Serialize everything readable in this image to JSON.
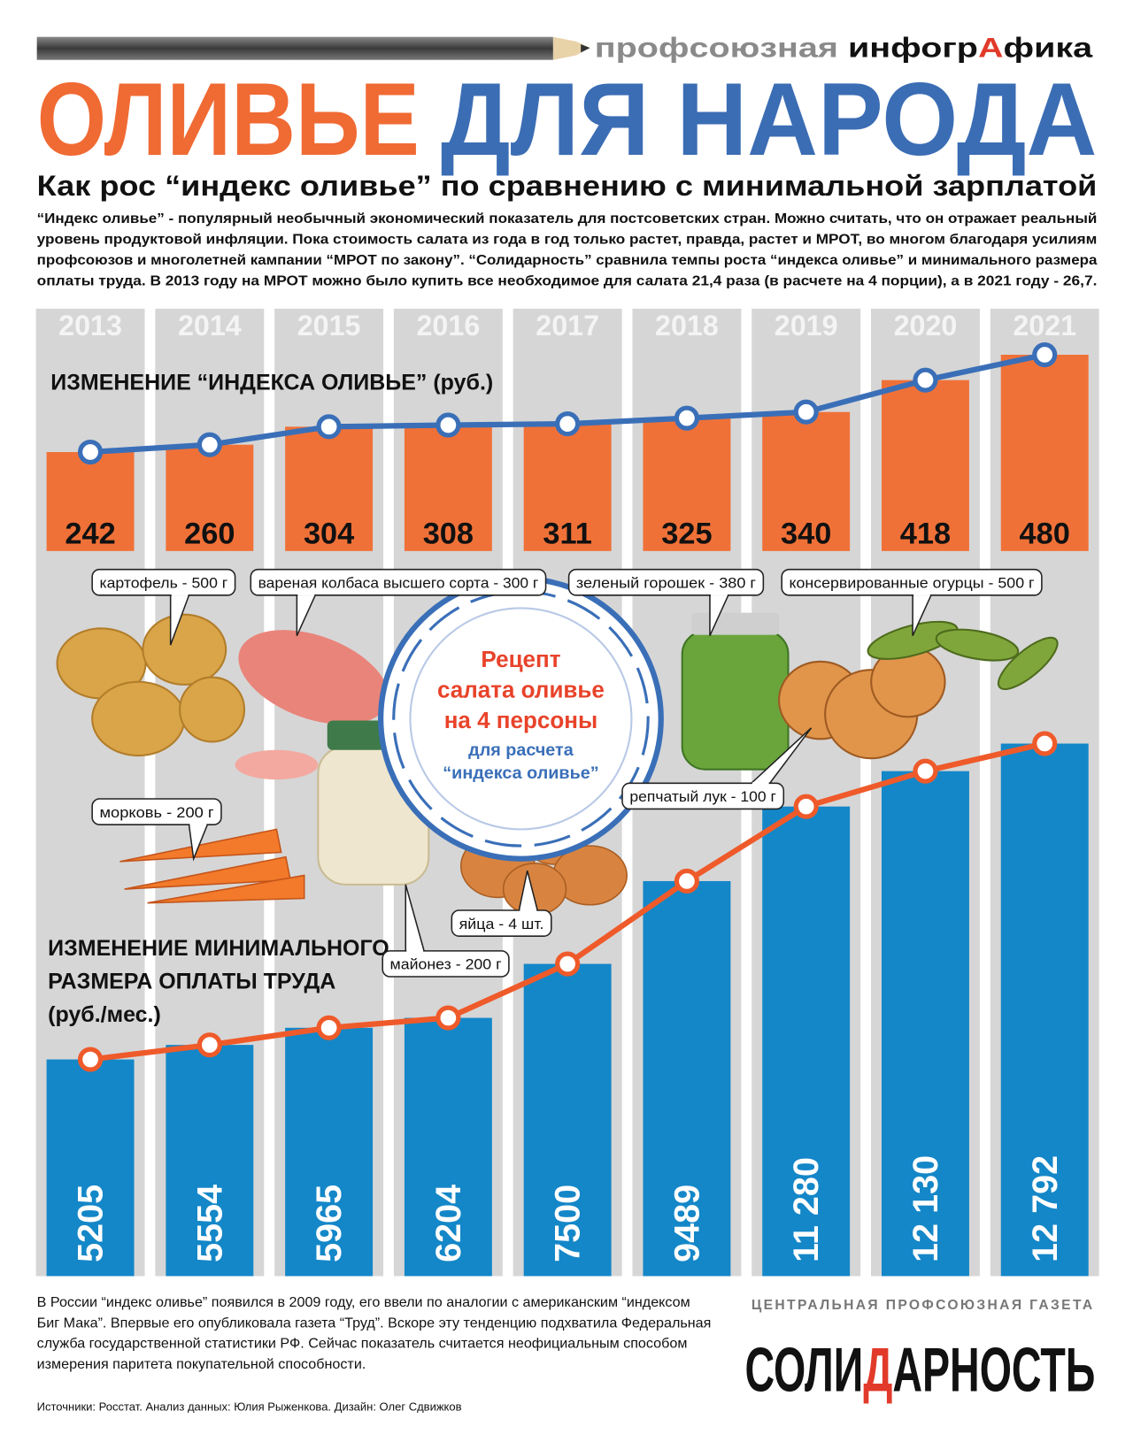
{
  "header": {
    "brand_parts": [
      "профсоюзная",
      "инфогр",
      "А",
      "фика"
    ],
    "title_part1": "ОЛИВЬЕ",
    "title_part2": "ДЛЯ НАРОДА",
    "subtitle": "Как рос “индекс оливье” по сравнению с минимальной зарплатой",
    "intro": [
      "“Индекс оливье” - популярный необычный экономический показатель для постсоветских стран. Можно считать, что он отражает реальный",
      "уровень продуктовой инфляции. Пока стоимость салата из года в год только растет, правда, растет и МРОТ, во многом благодаря усилиям",
      "профсоюзов и многолетней кампании “МРОТ по закону”. “Солидарность” сравнила темпы роста “индекса оливье” и минимального размера",
      "оплаты труда. В 2013 году на МРОТ можно было купить все необходимое для салата 21,4 раза (в расчете на 4 порции), а в 2021 году - 26,7."
    ]
  },
  "chart_data": {
    "type": "bar_line",
    "categories": [
      "2013",
      "2014",
      "2015",
      "2016",
      "2017",
      "2018",
      "2019",
      "2020",
      "2021"
    ],
    "series": [
      {
        "name": "ИЗМЕНЕНИЕ “ИНДЕКСА ОЛИВЬЕ” (руб.)",
        "color": "#f07138",
        "line_color": "#3a6fb8",
        "values": [
          242,
          260,
          304,
          308,
          311,
          325,
          340,
          418,
          480
        ]
      },
      {
        "name": "ИЗМЕНЕНИЕ МИНИМАЛЬНОГО\nРАЗМЕРА ОПЛАТЫ ТРУДА\n(руб./мес.)",
        "color": "#1487c8",
        "line_color": "#ef5a2a",
        "values": [
          5205,
          5554,
          5965,
          6204,
          7500,
          9489,
          11280,
          12130,
          12792
        ],
        "value_labels": [
          "5205",
          "5554",
          "5965",
          "6204",
          "7500",
          "9489",
          "11 280",
          "12 130",
          "12 792"
        ]
      }
    ]
  },
  "recipe": [
    "Рецепт",
    "салата оливье",
    "на 4 персоны",
    "для расчета",
    "“индекса оливье”"
  ],
  "ingredients": [
    "картофель - 500 г",
    "вареная колбаса высшего сорта - 300 г",
    "зеленый горошек - 380 г",
    "консервированные огурцы - 500 г",
    "морковь - 200 г",
    "репчатый лук - 100 г",
    "яйца - 4 шт.",
    "майонез - 200 г"
  ],
  "footer": {
    "note": [
      "В России “индекс оливье” появился в 2009 году, его ввели по аналогии с американским “индексом",
      "Биг Мака”. Впервые его опубликовала газета “Труд”. Вскоре эту тенденцию подхватила Федеральная",
      "служба государственной статистики РФ. Сейчас показатель считается неофициальным способом",
      "измерения паритета покупательной способности."
    ],
    "sources": "Источники: Росстат. Анализ данных: Юлия Рыженкова. Дизайн: Олег Сдвижков",
    "tagline": "ЦЕНТРАЛЬНАЯ ПРОФСОЮЗНАЯ ГАЗЕТА",
    "name_parts": [
      "СОЛИ",
      "Д",
      "АРНОСТЬ"
    ]
  }
}
